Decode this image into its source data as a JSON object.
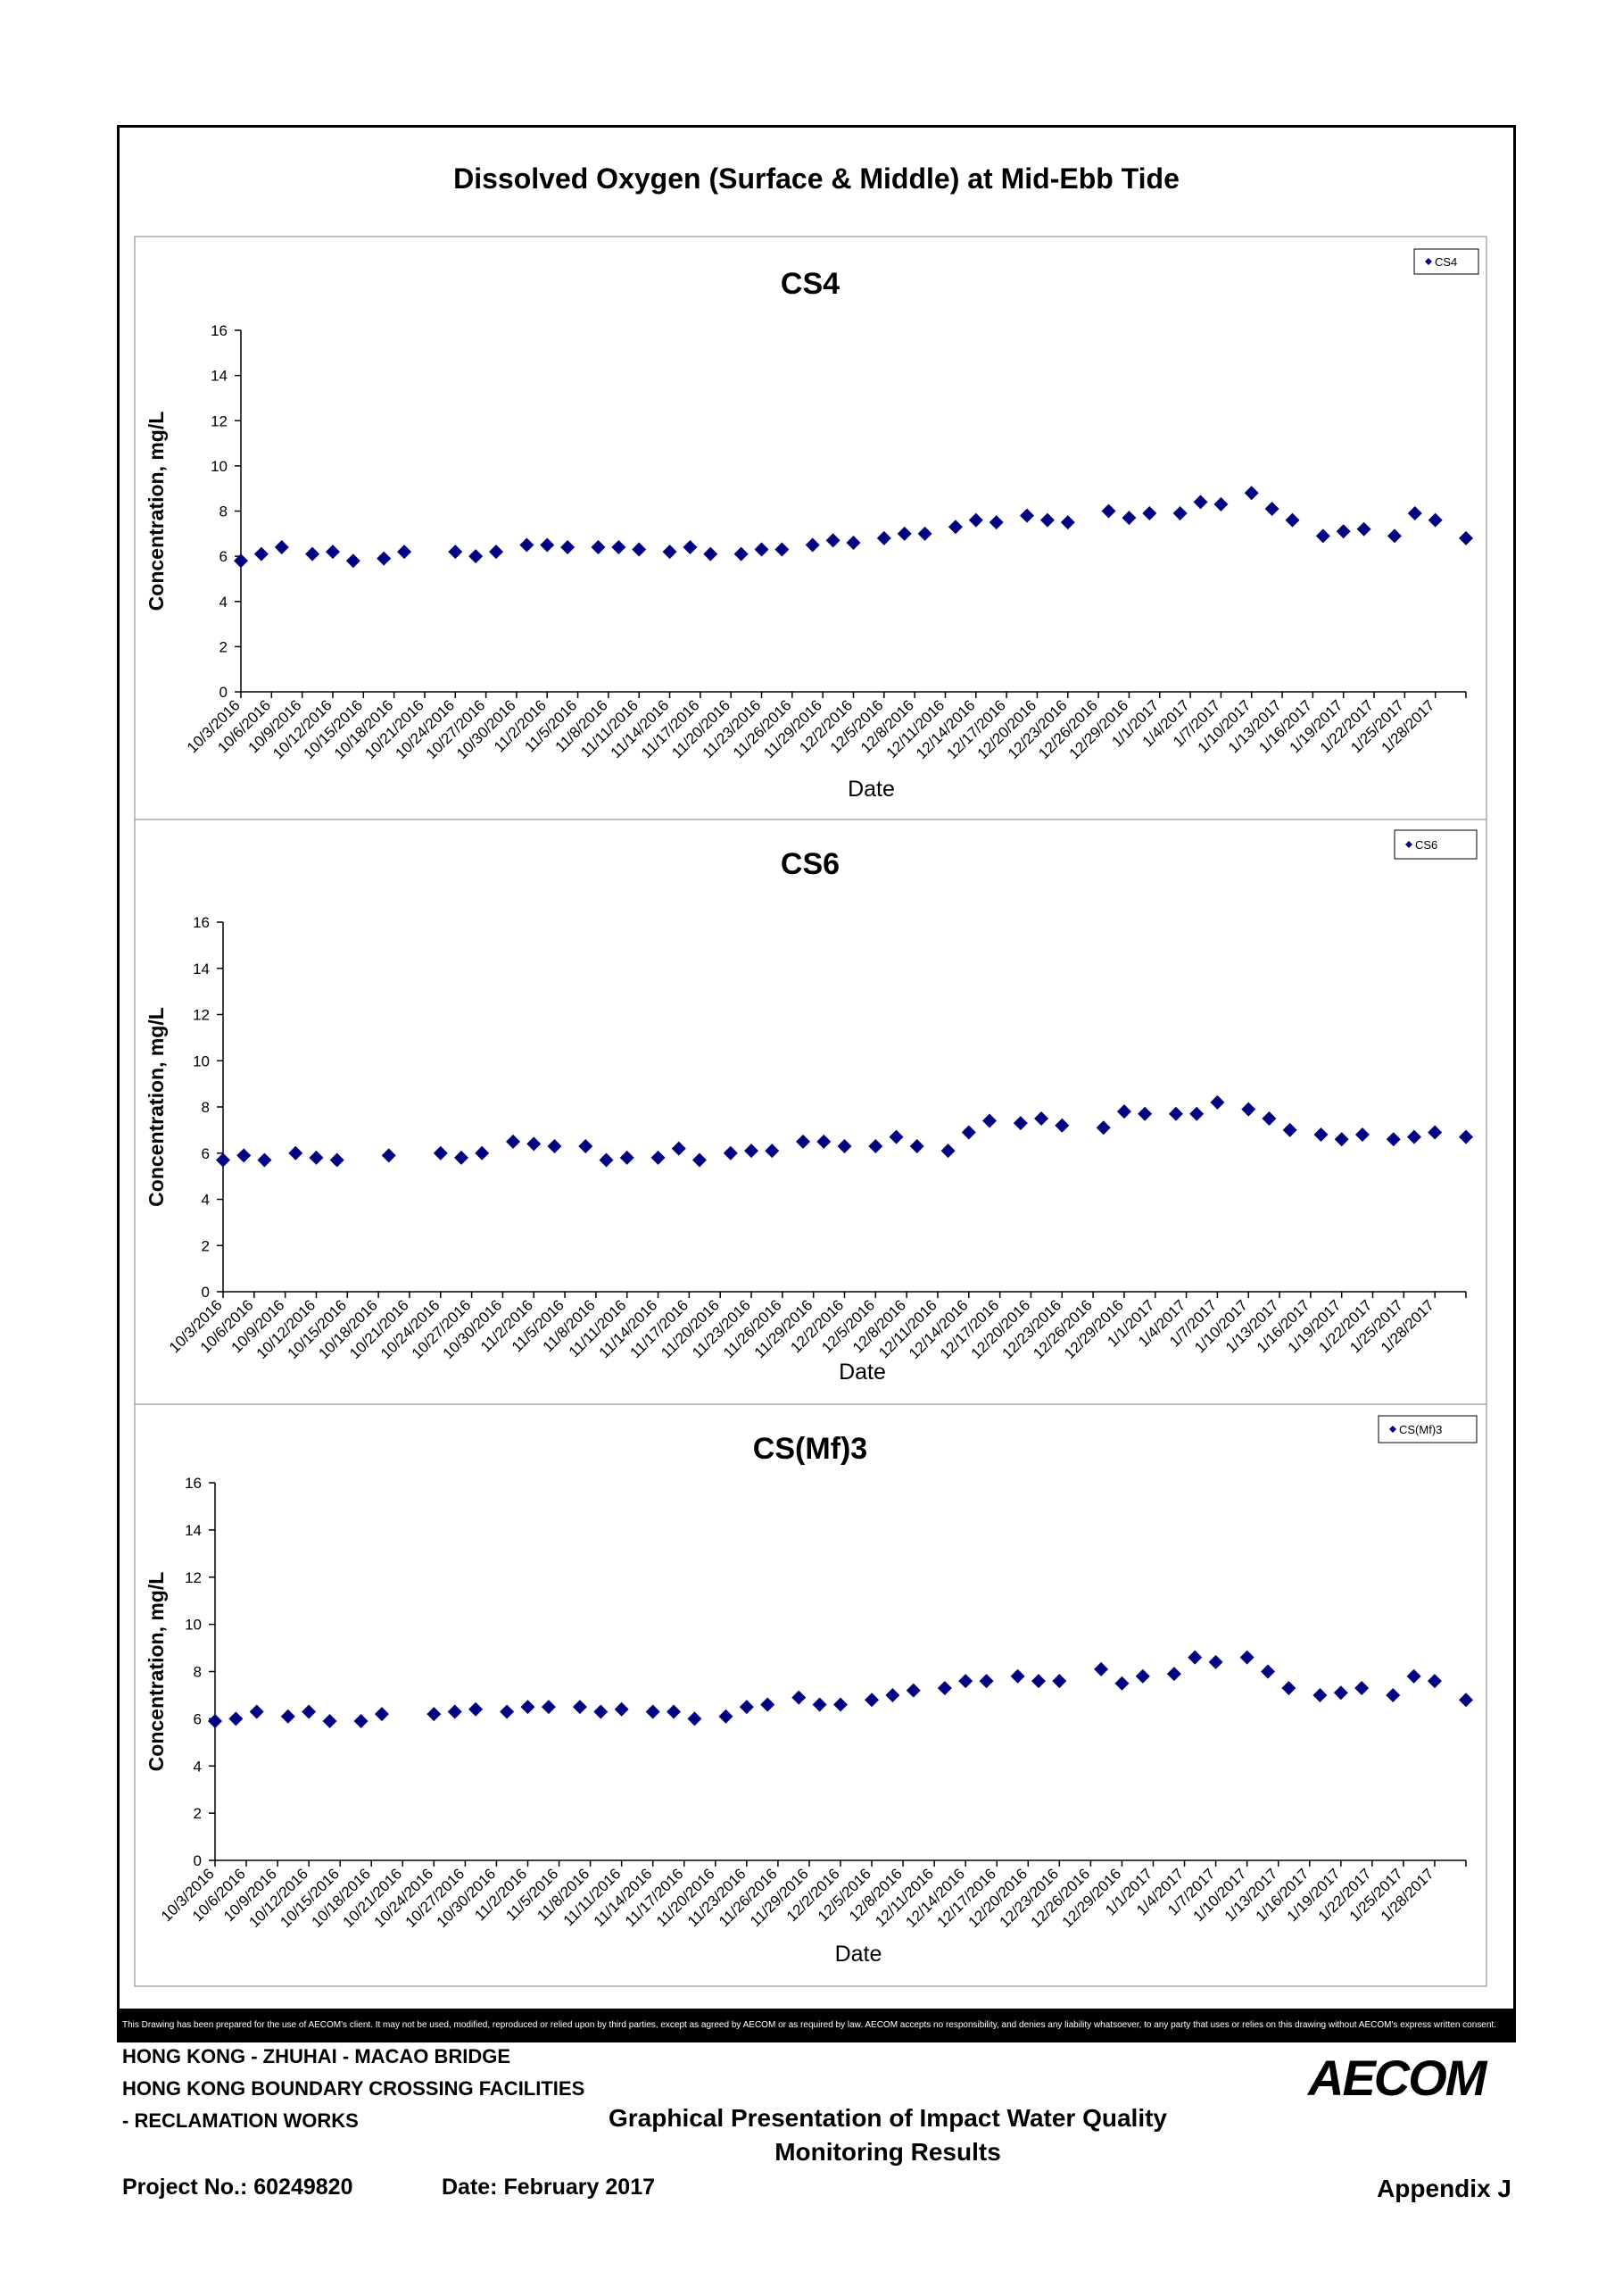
{
  "main_title": "Dissolved Oxygen (Surface & Middle) at Mid-Ebb Tide",
  "disclaimer": "This Drawing has been prepared for the use of AECOM's client. It may not be used, modified, reproduced or relied upon by third parties, except as agreed by AECOM or as required by law. AECOM accepts no responsibility, and denies any liability whatsoever, to any party that uses or relies on this drawing without AECOM's express written consent.",
  "footer": {
    "project_line1": "HONG KONG - ZHUHAI - MACAO BRIDGE",
    "project_line2": "HONG KONG BOUNDARY CROSSING FACILITIES",
    "project_line3": "- RECLAMATION WORKS",
    "presentation_title_1": "Graphical Presentation of Impact Water Quality",
    "presentation_title_2": "Monitoring Results",
    "project_no": "Project No.: 60249820",
    "date": "Date: February 2017",
    "appendix": "Appendix J",
    "logo_text": "AECOM"
  },
  "colors": {
    "marker": "#000080",
    "axis": "#000000"
  },
  "chart_data": [
    {
      "type": "scatter",
      "title": "CS4",
      "xlabel": "Date",
      "ylabel": "Concentration, mg/L",
      "ylim": [
        0,
        16
      ],
      "yticks": [
        "0",
        "2",
        "4",
        "6",
        "8",
        "10",
        "12",
        "14",
        "16"
      ],
      "x_tick_labels": [
        "10/3/2016",
        "10/6/2016",
        "10/9/2016",
        "10/12/2016",
        "10/15/2016",
        "10/18/2016",
        "10/21/2016",
        "10/24/2016",
        "10/27/2016",
        "10/30/2016",
        "11/2/2016",
        "11/5/2016",
        "11/8/2016",
        "11/11/2016",
        "11/14/2016",
        "11/17/2016",
        "11/20/2016",
        "11/23/2016",
        "11/26/2016",
        "11/29/2016",
        "12/2/2016",
        "12/5/2016",
        "12/8/2016",
        "12/11/2016",
        "12/14/2016",
        "12/17/2016",
        "12/20/2016",
        "12/23/2016",
        "12/26/2016",
        "12/29/2016",
        "1/1/2017",
        "1/4/2017",
        "1/7/2017",
        "1/10/2017",
        "1/13/2017",
        "1/16/2017",
        "1/19/2017",
        "1/22/2017",
        "1/25/2017",
        "1/28/2017"
      ],
      "legend": "CS4",
      "legend_position": "top-right",
      "series": [
        {
          "name": "CS4",
          "points": [
            [
              "10/3/2016",
              5.8
            ],
            [
              "10/5/2016",
              6.1
            ],
            [
              "10/7/2016",
              6.4
            ],
            [
              "10/10/2016",
              6.1
            ],
            [
              "10/12/2016",
              6.2
            ],
            [
              "10/14/2016",
              5.8
            ],
            [
              "10/17/2016",
              5.9
            ],
            [
              "10/19/2016",
              6.2
            ],
            [
              "10/24/2016",
              6.2
            ],
            [
              "10/26/2016",
              6.0
            ],
            [
              "10/28/2016",
              6.2
            ],
            [
              "10/31/2016",
              6.5
            ],
            [
              "11/2/2016",
              6.5
            ],
            [
              "11/4/2016",
              6.4
            ],
            [
              "11/7/2016",
              6.4
            ],
            [
              "11/9/2016",
              6.4
            ],
            [
              "11/11/2016",
              6.3
            ],
            [
              "11/14/2016",
              6.2
            ],
            [
              "11/16/2016",
              6.4
            ],
            [
              "11/18/2016",
              6.1
            ],
            [
              "11/21/2016",
              6.1
            ],
            [
              "11/23/2016",
              6.3
            ],
            [
              "11/25/2016",
              6.3
            ],
            [
              "11/28/2016",
              6.5
            ],
            [
              "11/30/2016",
              6.7
            ],
            [
              "12/2/2016",
              6.6
            ],
            [
              "12/5/2016",
              6.8
            ],
            [
              "12/7/2016",
              7.0
            ],
            [
              "12/9/2016",
              7.0
            ],
            [
              "12/12/2016",
              7.3
            ],
            [
              "12/14/2016",
              7.6
            ],
            [
              "12/16/2016",
              7.5
            ],
            [
              "12/19/2016",
              7.8
            ],
            [
              "12/21/2016",
              7.6
            ],
            [
              "12/23/2016",
              7.5
            ],
            [
              "12/27/2016",
              8.0
            ],
            [
              "12/29/2016",
              7.7
            ],
            [
              "12/31/2016",
              7.9
            ],
            [
              "1/3/2017",
              7.9
            ],
            [
              "1/5/2017",
              8.4
            ],
            [
              "1/7/2017",
              8.3
            ],
            [
              "1/10/2017",
              8.8
            ],
            [
              "1/12/2017",
              8.1
            ],
            [
              "1/14/2017",
              7.6
            ],
            [
              "1/17/2017",
              6.9
            ],
            [
              "1/19/2017",
              7.1
            ],
            [
              "1/21/2017",
              7.2
            ],
            [
              "1/24/2017",
              6.9
            ],
            [
              "1/26/2017",
              7.9
            ],
            [
              "1/28/2017",
              7.6
            ],
            [
              "1/31/2017",
              6.8
            ]
          ]
        }
      ]
    },
    {
      "type": "scatter",
      "title": "CS6",
      "xlabel": "Date",
      "ylabel": "Concentration, mg/L",
      "ylim": [
        0,
        16
      ],
      "yticks": [
        "0",
        "2",
        "4",
        "6",
        "8",
        "10",
        "12",
        "14",
        "16"
      ],
      "x_tick_labels": [
        "10/3/2016",
        "10/6/2016",
        "10/9/2016",
        "10/12/2016",
        "10/15/2016",
        "10/18/2016",
        "10/21/2016",
        "10/24/2016",
        "10/27/2016",
        "10/30/2016",
        "11/2/2016",
        "11/5/2016",
        "11/8/2016",
        "11/11/2016",
        "11/14/2016",
        "11/17/2016",
        "11/20/2016",
        "11/23/2016",
        "11/26/2016",
        "11/29/2016",
        "12/2/2016",
        "12/5/2016",
        "12/8/2016",
        "12/11/2016",
        "12/14/2016",
        "12/17/2016",
        "12/20/2016",
        "12/23/2016",
        "12/26/2016",
        "12/29/2016",
        "1/1/2017",
        "1/4/2017",
        "1/7/2017",
        "1/10/2017",
        "1/13/2017",
        "1/16/2017",
        "1/19/2017",
        "1/22/2017",
        "1/25/2017",
        "1/28/2017"
      ],
      "legend": "CS6",
      "legend_position": "top-right",
      "series": [
        {
          "name": "CS6",
          "points": [
            [
              "10/3/2016",
              5.7
            ],
            [
              "10/5/2016",
              5.9
            ],
            [
              "10/7/2016",
              5.7
            ],
            [
              "10/10/2016",
              6.0
            ],
            [
              "10/12/2016",
              5.8
            ],
            [
              "10/14/2016",
              5.7
            ],
            [
              "10/19/2016",
              5.9
            ],
            [
              "10/24/2016",
              6.0
            ],
            [
              "10/26/2016",
              5.8
            ],
            [
              "10/28/2016",
              6.0
            ],
            [
              "10/31/2016",
              6.5
            ],
            [
              "11/2/2016",
              6.4
            ],
            [
              "11/4/2016",
              6.3
            ],
            [
              "11/7/2016",
              6.3
            ],
            [
              "11/9/2016",
              5.7
            ],
            [
              "11/11/2016",
              5.8
            ],
            [
              "11/14/2016",
              5.8
            ],
            [
              "11/16/2016",
              6.2
            ],
            [
              "11/18/2016",
              5.7
            ],
            [
              "11/21/2016",
              6.0
            ],
            [
              "11/23/2016",
              6.1
            ],
            [
              "11/25/2016",
              6.1
            ],
            [
              "11/28/2016",
              6.5
            ],
            [
              "11/30/2016",
              6.5
            ],
            [
              "12/2/2016",
              6.3
            ],
            [
              "12/5/2016",
              6.3
            ],
            [
              "12/7/2016",
              6.7
            ],
            [
              "12/9/2016",
              6.3
            ],
            [
              "12/12/2016",
              6.1
            ],
            [
              "12/14/2016",
              6.9
            ],
            [
              "12/16/2016",
              7.4
            ],
            [
              "12/19/2016",
              7.3
            ],
            [
              "12/21/2016",
              7.5
            ],
            [
              "12/23/2016",
              7.2
            ],
            [
              "12/27/2016",
              7.1
            ],
            [
              "12/29/2016",
              7.8
            ],
            [
              "12/31/2016",
              7.7
            ],
            [
              "1/3/2017",
              7.7
            ],
            [
              "1/5/2017",
              7.7
            ],
            [
              "1/7/2017",
              8.2
            ],
            [
              "1/10/2017",
              7.9
            ],
            [
              "1/12/2017",
              7.5
            ],
            [
              "1/14/2017",
              7.0
            ],
            [
              "1/17/2017",
              6.8
            ],
            [
              "1/19/2017",
              6.6
            ],
            [
              "1/21/2017",
              6.8
            ],
            [
              "1/24/2017",
              6.6
            ],
            [
              "1/26/2017",
              6.7
            ],
            [
              "1/28/2017",
              6.9
            ],
            [
              "1/31/2017",
              6.7
            ]
          ]
        }
      ]
    },
    {
      "type": "scatter",
      "title": "CS(Mf)3",
      "xlabel": "Date",
      "ylabel": "Concentration, mg/L",
      "ylim": [
        0,
        16
      ],
      "yticks": [
        "0",
        "2",
        "4",
        "6",
        "8",
        "10",
        "12",
        "14",
        "16"
      ],
      "x_tick_labels": [
        "10/3/2016",
        "10/6/2016",
        "10/9/2016",
        "10/12/2016",
        "10/15/2016",
        "10/18/2016",
        "10/21/2016",
        "10/24/2016",
        "10/27/2016",
        "10/30/2016",
        "11/2/2016",
        "11/5/2016",
        "11/8/2016",
        "11/11/2016",
        "11/14/2016",
        "11/17/2016",
        "11/20/2016",
        "11/23/2016",
        "11/26/2016",
        "11/29/2016",
        "12/2/2016",
        "12/5/2016",
        "12/8/2016",
        "12/11/2016",
        "12/14/2016",
        "12/17/2016",
        "12/20/2016",
        "12/23/2016",
        "12/26/2016",
        "12/29/2016",
        "1/1/2017",
        "1/4/2017",
        "1/7/2017",
        "1/10/2017",
        "1/13/2017",
        "1/16/2017",
        "1/19/2017",
        "1/22/2017",
        "1/25/2017",
        "1/28/2017"
      ],
      "legend": "CS(Mf)3",
      "legend_position": "top-right",
      "series": [
        {
          "name": "CS(Mf)3",
          "points": [
            [
              "10/3/2016",
              5.9
            ],
            [
              "10/5/2016",
              6.0
            ],
            [
              "10/7/2016",
              6.3
            ],
            [
              "10/10/2016",
              6.1
            ],
            [
              "10/12/2016",
              6.3
            ],
            [
              "10/14/2016",
              5.9
            ],
            [
              "10/17/2016",
              5.9
            ],
            [
              "10/19/2016",
              6.2
            ],
            [
              "10/24/2016",
              6.2
            ],
            [
              "10/26/2016",
              6.3
            ],
            [
              "10/28/2016",
              6.4
            ],
            [
              "10/31/2016",
              6.3
            ],
            [
              "11/2/2016",
              6.5
            ],
            [
              "11/4/2016",
              6.5
            ],
            [
              "11/7/2016",
              6.5
            ],
            [
              "11/9/2016",
              6.3
            ],
            [
              "11/11/2016",
              6.4
            ],
            [
              "11/14/2016",
              6.3
            ],
            [
              "11/16/2016",
              6.3
            ],
            [
              "11/18/2016",
              6.0
            ],
            [
              "11/21/2016",
              6.1
            ],
            [
              "11/23/2016",
              6.5
            ],
            [
              "11/25/2016",
              6.6
            ],
            [
              "11/28/2016",
              6.9
            ],
            [
              "11/30/2016",
              6.6
            ],
            [
              "12/2/2016",
              6.6
            ],
            [
              "12/5/2016",
              6.8
            ],
            [
              "12/7/2016",
              7.0
            ],
            [
              "12/9/2016",
              7.2
            ],
            [
              "12/12/2016",
              7.3
            ],
            [
              "12/14/2016",
              7.6
            ],
            [
              "12/16/2016",
              7.6
            ],
            [
              "12/19/2016",
              7.8
            ],
            [
              "12/21/2016",
              7.6
            ],
            [
              "12/23/2016",
              7.6
            ],
            [
              "12/27/2016",
              8.1
            ],
            [
              "12/29/2016",
              7.5
            ],
            [
              "12/31/2016",
              7.8
            ],
            [
              "1/3/2017",
              7.9
            ],
            [
              "1/5/2017",
              8.6
            ],
            [
              "1/7/2017",
              8.4
            ],
            [
              "1/10/2017",
              8.6
            ],
            [
              "1/12/2017",
              8.0
            ],
            [
              "1/14/2017",
              7.3
            ],
            [
              "1/17/2017",
              7.0
            ],
            [
              "1/19/2017",
              7.1
            ],
            [
              "1/21/2017",
              7.3
            ],
            [
              "1/24/2017",
              7.0
            ],
            [
              "1/26/2017",
              7.8
            ],
            [
              "1/28/2017",
              7.6
            ],
            [
              "1/31/2017",
              6.8
            ]
          ]
        }
      ]
    }
  ]
}
